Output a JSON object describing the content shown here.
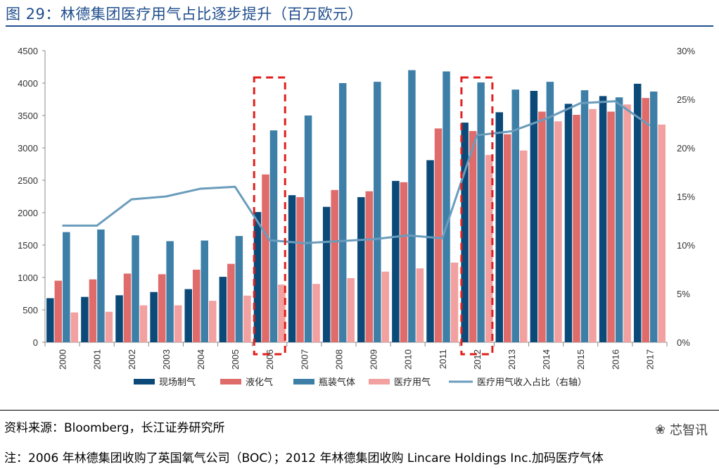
{
  "page": {
    "title": "图 29：林德集团医疗用气占比逐步提升（百万欧元）",
    "source": "资料来源：Bloomberg，长江证券研究所",
    "note": "注：2006 年林德集团收购了英国氧气公司（BOC）；2012 年林德集团收购 Lincare Holdings Inc.加码医疗气体",
    "watermark": "芯智讯",
    "watermark_icon": "wechat-icon"
  },
  "chart_data": {
    "type": "bar",
    "title": "林德集团医疗用气占比逐步提升（百万欧元）",
    "categories": [
      "2000",
      "2001",
      "2002",
      "2003",
      "2004",
      "2005",
      "2006",
      "2007",
      "2008",
      "2009",
      "2010",
      "2011",
      "2012",
      "2013",
      "2014",
      "2015",
      "2016",
      "2017"
    ],
    "ylim": [
      0,
      4500
    ],
    "yticks": [
      0,
      500,
      1000,
      1500,
      2000,
      2500,
      3000,
      3500,
      4000,
      4500
    ],
    "y2lim": [
      0,
      30
    ],
    "y2ticks": [
      "0%",
      "5%",
      "10%",
      "15%",
      "20%",
      "25%",
      "30%"
    ],
    "series": [
      {
        "name": "现场制气",
        "type": "bar",
        "color": "#0b4a78",
        "values": [
          680,
          700,
          725,
          775,
          820,
          1010,
          2010,
          2270,
          2090,
          2240,
          2490,
          2810,
          3390,
          3550,
          3880,
          3680,
          3800,
          3990
        ]
      },
      {
        "name": "液化气",
        "type": "bar",
        "color": "#e06b6b",
        "values": [
          950,
          970,
          1060,
          1050,
          1120,
          1210,
          2590,
          2240,
          2350,
          2330,
          2470,
          3300,
          3260,
          3210,
          3560,
          3510,
          3560,
          3770
        ]
      },
      {
        "name": "瓶装气体",
        "type": "bar",
        "color": "#3e7fa8",
        "values": [
          1700,
          1740,
          1650,
          1560,
          1570,
          1640,
          3270,
          3500,
          4000,
          4020,
          4200,
          4180,
          4010,
          3900,
          4020,
          3890,
          3780,
          3870
        ]
      },
      {
        "name": "医疗用气",
        "type": "bar",
        "color": "#f2a0a0",
        "values": [
          460,
          470,
          570,
          570,
          640,
          720,
          890,
          900,
          990,
          1090,
          1140,
          1230,
          2890,
          2960,
          3410,
          3600,
          3670,
          3360
        ]
      },
      {
        "name": "医疗用气收入占比（右轴）",
        "type": "line",
        "axis": "right",
        "color": "#6a9cbc",
        "values": [
          12.0,
          12.0,
          14.7,
          15.0,
          15.8,
          16.0,
          10.5,
          10.2,
          10.4,
          10.6,
          11.0,
          10.7,
          21.3,
          21.7,
          23.0,
          24.6,
          24.8,
          22.3
        ]
      }
    ],
    "highlight_categories": [
      "2006",
      "2012"
    ],
    "highlight_color": "#e0201c"
  }
}
